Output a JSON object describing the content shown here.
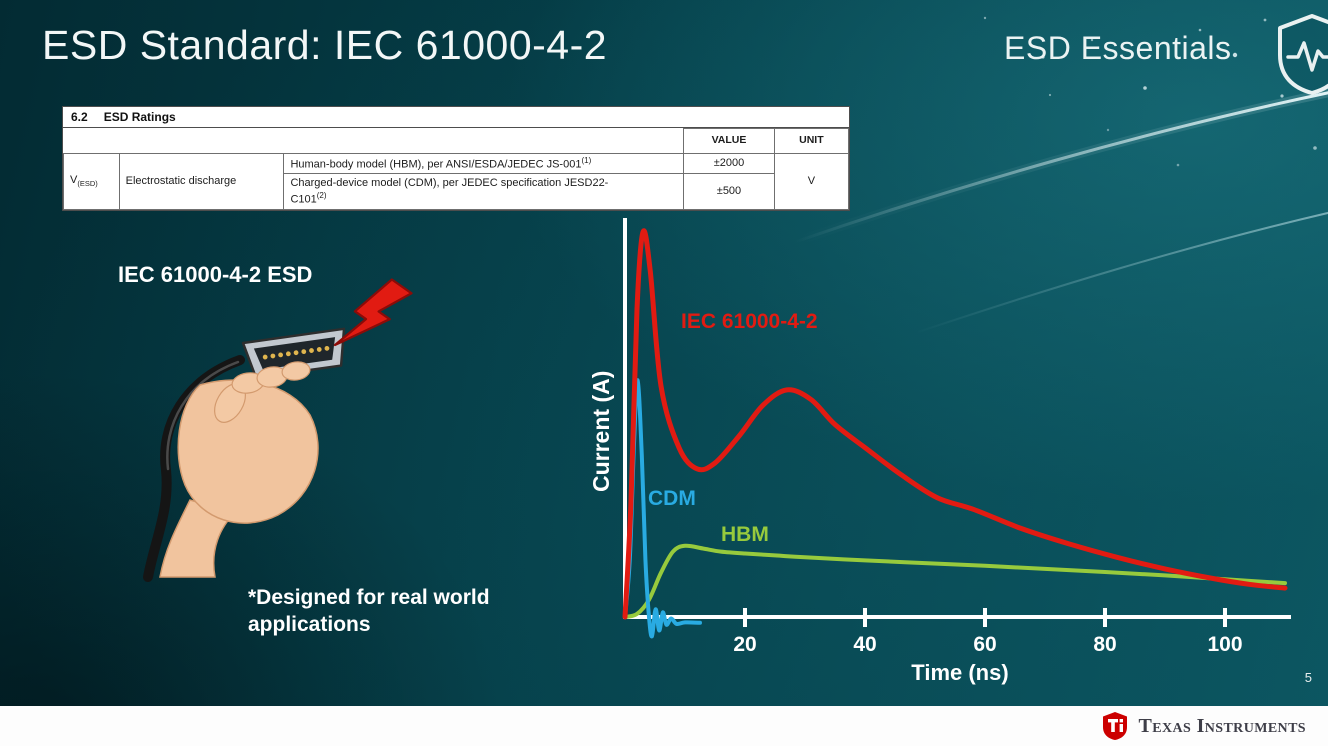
{
  "slide": {
    "title": "ESD Standard: IEC 61000-4-2",
    "brand": "ESD Essentials",
    "page_number": "5"
  },
  "ratings_table": {
    "section_no": "6.2",
    "section_title": "ESD Ratings",
    "headers": {
      "value": "VALUE",
      "unit": "UNIT"
    },
    "symbol": "V",
    "symbol_sub": "(ESD)",
    "parameter": "Electrostatic discharge",
    "rows": [
      {
        "model": "Human-body model (HBM), per ANSI/ESDA/JEDEC JS-001",
        "model_sup": "(1)",
        "value": "±2000"
      },
      {
        "model": "Charged-device model (CDM), per JEDEC specification JESD22-",
        "model2": "C101",
        "model_sup": "(2)",
        "value": "±500"
      }
    ],
    "unit": "V"
  },
  "illustration": {
    "caption": "IEC 61000-4-2 ESD",
    "note": "*Designed for real world applications"
  },
  "footer": {
    "logo_text": "Texas Instruments"
  },
  "icons": {
    "brand": "shield-pulse-icon",
    "illustration": "hand-holding-hdmi-with-esd-bolt",
    "footer": "ti-bug-icon"
  },
  "colors": {
    "background_teal": "#05414b",
    "ti_red": "#cc0000",
    "footer_bg": "#ffffff"
  },
  "chart_data": {
    "type": "line",
    "title": "",
    "xlabel": "Time (ns)",
    "ylabel": "Current (A)",
    "xlim": [
      0,
      110
    ],
    "ylim": [
      -0.06,
      1.05
    ],
    "x_ticks": [
      20,
      40,
      60,
      80,
      100
    ],
    "y_ticks": [],
    "grid": false,
    "legend": "inline-labels",
    "series": [
      {
        "name": "IEC 61000-4-2",
        "color": "#e11b12",
        "points": [
          [
            0,
            0
          ],
          [
            1,
            0.3
          ],
          [
            2,
            0.8
          ],
          [
            3,
            1.0
          ],
          [
            4.2,
            0.9
          ],
          [
            6,
            0.6
          ],
          [
            9,
            0.44
          ],
          [
            12,
            0.385
          ],
          [
            15,
            0.4
          ],
          [
            19,
            0.47
          ],
          [
            23,
            0.55
          ],
          [
            27,
            0.59
          ],
          [
            31,
            0.565
          ],
          [
            35,
            0.5
          ],
          [
            40,
            0.44
          ],
          [
            46,
            0.37
          ],
          [
            52,
            0.31
          ],
          [
            58,
            0.28
          ],
          [
            66,
            0.23
          ],
          [
            74,
            0.19
          ],
          [
            82,
            0.155
          ],
          [
            90,
            0.125
          ],
          [
            98,
            0.1
          ],
          [
            104,
            0.085
          ],
          [
            110,
            0.075
          ]
        ]
      },
      {
        "name": "CDM",
        "color": "#29abe2",
        "points": [
          [
            0,
            0
          ],
          [
            0.8,
            0.15
          ],
          [
            1.5,
            0.45
          ],
          [
            2.1,
            0.615
          ],
          [
            2.8,
            0.42
          ],
          [
            3.4,
            0.15
          ],
          [
            4,
            0
          ],
          [
            4.5,
            -0.05
          ],
          [
            5.1,
            0.02
          ],
          [
            5.7,
            -0.035
          ],
          [
            6.3,
            0.012
          ],
          [
            6.9,
            -0.02
          ],
          [
            7.7,
            -0.004
          ],
          [
            8.6,
            -0.018
          ],
          [
            10,
            -0.014
          ],
          [
            12.5,
            -0.015
          ]
        ]
      },
      {
        "name": "HBM",
        "color": "#97ca3d",
        "points": [
          [
            0,
            0
          ],
          [
            2,
            0.008
          ],
          [
            4,
            0.045
          ],
          [
            6,
            0.115
          ],
          [
            8,
            0.17
          ],
          [
            10,
            0.185
          ],
          [
            13,
            0.178
          ],
          [
            16,
            0.17
          ],
          [
            20,
            0.165
          ],
          [
            25,
            0.16
          ],
          [
            30,
            0.155
          ],
          [
            40,
            0.147
          ],
          [
            50,
            0.14
          ],
          [
            60,
            0.133
          ],
          [
            70,
            0.125
          ],
          [
            80,
            0.117
          ],
          [
            90,
            0.108
          ],
          [
            100,
            0.098
          ],
          [
            110,
            0.088
          ]
        ]
      }
    ]
  }
}
